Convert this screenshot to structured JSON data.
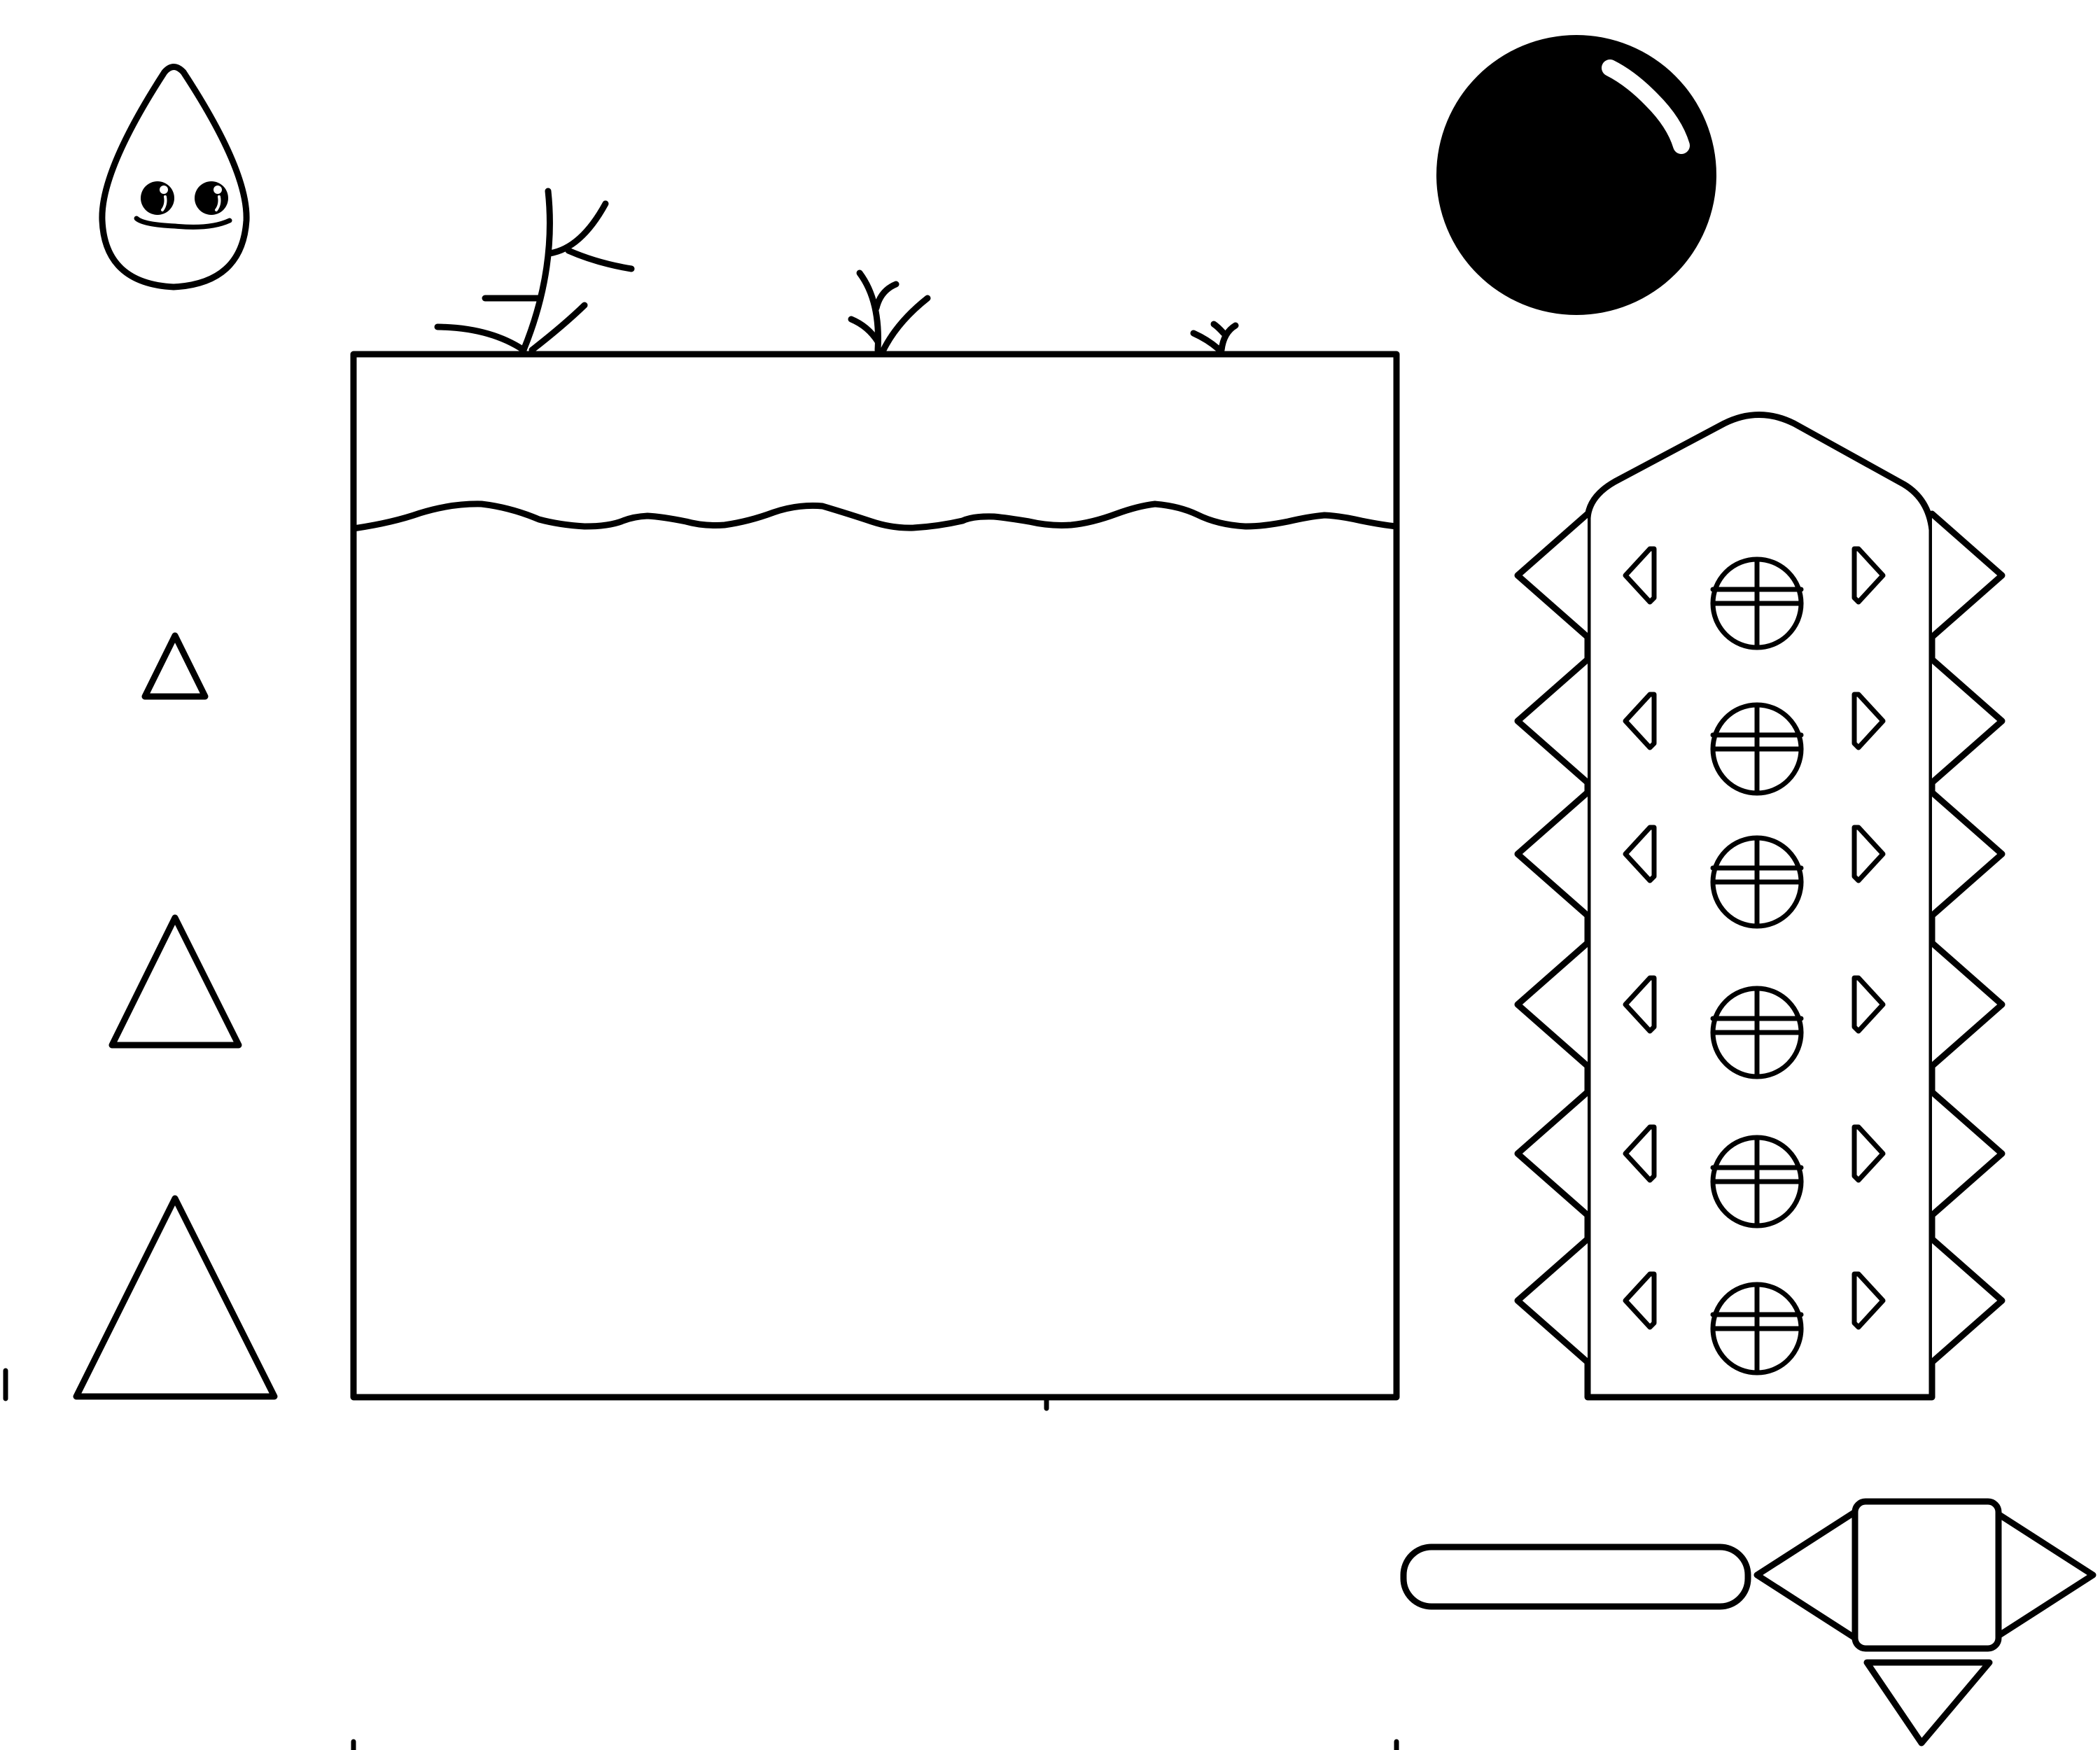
{
  "figure": {
    "labels": [],
    "colors": {
      "stroke": "#000000",
      "background": "#ffffff"
    },
    "items": [
      {
        "name": "water-drop-icon"
      },
      {
        "name": "seedling-icon"
      },
      {
        "name": "black-ball-icon"
      },
      {
        "name": "water-tank"
      },
      {
        "name": "water-surface-wave"
      },
      {
        "name": "small-triangle"
      },
      {
        "name": "medium-triangle"
      },
      {
        "name": "large-triangle"
      },
      {
        "name": "spiky-tower"
      },
      {
        "name": "pill-bar"
      },
      {
        "name": "arrow-cross-block"
      }
    ]
  }
}
